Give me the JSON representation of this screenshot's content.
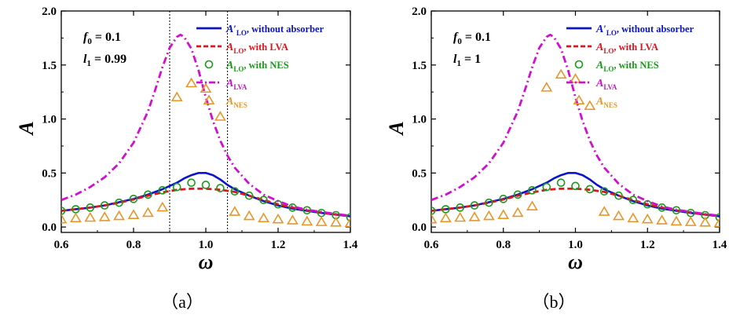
{
  "colors": {
    "without_absorber": "#0a14c8",
    "lva": "#e0141e",
    "nes": "#1a9a1a",
    "a_lva": "#d010d0",
    "a_nes": "#e8962a",
    "axis": "#000000",
    "guide_line": "#000000"
  },
  "chart_data": [
    {
      "type": "line",
      "panel": "(a)",
      "caption": "（a）",
      "xlabel": "ω",
      "ylabel": "A",
      "xlim": [
        0.6,
        1.4
      ],
      "ylim": [
        -0.05,
        2.0
      ],
      "xticks": [
        "0.6",
        "0.8",
        "1.0",
        "1.2",
        "1.4"
      ],
      "yticks": [
        "0.0",
        "0.5",
        "1.0",
        "1.5",
        "2.0"
      ],
      "params": [
        "f0 = 0.1",
        "l1 = 0.99"
      ],
      "vertical_lines": [
        0.9,
        1.06
      ],
      "legend_position": "top-right",
      "series": [
        {
          "name": "A'LO, without absorber",
          "style": "solid",
          "color_key": "without_absorber",
          "x": [
            0.6,
            0.64,
            0.68,
            0.72,
            0.76,
            0.8,
            0.84,
            0.88,
            0.92,
            0.94,
            0.96,
            0.98,
            1.0,
            1.02,
            1.04,
            1.06,
            1.08,
            1.12,
            1.16,
            1.2,
            1.24,
            1.28,
            1.32,
            1.36,
            1.4
          ],
          "y": [
            0.15,
            0.165,
            0.18,
            0.2,
            0.23,
            0.26,
            0.3,
            0.35,
            0.41,
            0.45,
            0.48,
            0.5,
            0.5,
            0.48,
            0.44,
            0.39,
            0.35,
            0.29,
            0.24,
            0.2,
            0.17,
            0.15,
            0.13,
            0.115,
            0.1
          ]
        },
        {
          "name": "ALO, with LVA",
          "style": "dashed",
          "color_key": "lva",
          "x": [
            0.6,
            0.64,
            0.68,
            0.72,
            0.76,
            0.8,
            0.84,
            0.88,
            0.92,
            0.96,
            1.0,
            1.04,
            1.08,
            1.12,
            1.16,
            1.2,
            1.24,
            1.28,
            1.32,
            1.36,
            1.4
          ],
          "y": [
            0.15,
            0.165,
            0.18,
            0.2,
            0.225,
            0.255,
            0.29,
            0.32,
            0.345,
            0.355,
            0.355,
            0.345,
            0.325,
            0.29,
            0.25,
            0.21,
            0.18,
            0.155,
            0.135,
            0.115,
            0.1
          ]
        },
        {
          "name": "ALO, with NES",
          "style": "circle",
          "color_key": "nes",
          "x": [
            0.6,
            0.64,
            0.68,
            0.72,
            0.76,
            0.8,
            0.84,
            0.88,
            0.92,
            0.96,
            1.0,
            1.04,
            1.08,
            1.12,
            1.16,
            1.2,
            1.24,
            1.28,
            1.32,
            1.36,
            1.4
          ],
          "y": [
            0.15,
            0.165,
            0.18,
            0.2,
            0.225,
            0.26,
            0.3,
            0.34,
            0.37,
            0.41,
            0.39,
            0.36,
            0.33,
            0.29,
            0.25,
            0.21,
            0.18,
            0.155,
            0.13,
            0.11,
            0.09
          ]
        },
        {
          "name": "ALVA",
          "style": "dashdot",
          "color_key": "a_lva",
          "x": [
            0.6,
            0.64,
            0.68,
            0.72,
            0.76,
            0.8,
            0.84,
            0.86,
            0.88,
            0.9,
            0.92,
            0.93,
            0.94,
            0.96,
            0.98,
            1.0,
            1.02,
            1.04,
            1.06,
            1.08,
            1.12,
            1.16,
            1.2,
            1.24,
            1.28,
            1.32,
            1.36,
            1.4
          ],
          "y": [
            0.25,
            0.3,
            0.37,
            0.46,
            0.59,
            0.78,
            1.07,
            1.27,
            1.48,
            1.66,
            1.76,
            1.78,
            1.76,
            1.65,
            1.45,
            1.2,
            0.98,
            0.8,
            0.66,
            0.55,
            0.4,
            0.3,
            0.24,
            0.19,
            0.16,
            0.14,
            0.12,
            0.105
          ]
        },
        {
          "name": "ANES",
          "style": "triangle",
          "color_key": "a_nes",
          "x": [
            0.6,
            0.64,
            0.68,
            0.72,
            0.76,
            0.8,
            0.84,
            0.88,
            0.92,
            0.96,
            1.0,
            1.04,
            1.08,
            1.12,
            1.16,
            1.2,
            1.24,
            1.28,
            1.32,
            1.36,
            1.4
          ],
          "y": [
            0.07,
            0.08,
            0.085,
            0.09,
            0.1,
            0.11,
            0.13,
            0.18,
            1.2,
            1.33,
            1.28,
            1.02,
            0.14,
            0.1,
            0.08,
            0.07,
            0.06,
            0.05,
            0.045,
            0.04,
            0.035
          ]
        }
      ]
    },
    {
      "type": "line",
      "panel": "(b)",
      "caption": "（b）",
      "xlabel": "ω",
      "ylabel": "A",
      "xlim": [
        0.6,
        1.4
      ],
      "ylim": [
        -0.05,
        2.0
      ],
      "xticks": [
        "0.6",
        "0.8",
        "1.0",
        "1.2",
        "1.4"
      ],
      "yticks": [
        "0.0",
        "0.5",
        "1.0",
        "1.5",
        "2.0"
      ],
      "params": [
        "f0 = 0.1",
        "l1 = 1"
      ],
      "vertical_lines": [],
      "legend_position": "top-right",
      "series": [
        {
          "name": "A'LO, without absorber",
          "style": "solid",
          "color_key": "without_absorber",
          "x": [
            0.6,
            0.64,
            0.68,
            0.72,
            0.76,
            0.8,
            0.84,
            0.88,
            0.92,
            0.94,
            0.96,
            0.98,
            1.0,
            1.02,
            1.04,
            1.06,
            1.08,
            1.12,
            1.16,
            1.2,
            1.24,
            1.28,
            1.32,
            1.36,
            1.4
          ],
          "y": [
            0.15,
            0.165,
            0.18,
            0.2,
            0.23,
            0.26,
            0.3,
            0.35,
            0.41,
            0.45,
            0.48,
            0.5,
            0.5,
            0.48,
            0.44,
            0.39,
            0.35,
            0.29,
            0.24,
            0.2,
            0.17,
            0.15,
            0.13,
            0.115,
            0.1
          ]
        },
        {
          "name": "ALO, with LVA",
          "style": "dashed",
          "color_key": "lva",
          "x": [
            0.6,
            0.64,
            0.68,
            0.72,
            0.76,
            0.8,
            0.84,
            0.88,
            0.92,
            0.96,
            1.0,
            1.04,
            1.08,
            1.12,
            1.16,
            1.2,
            1.24,
            1.28,
            1.32,
            1.36,
            1.4
          ],
          "y": [
            0.15,
            0.165,
            0.18,
            0.2,
            0.225,
            0.255,
            0.29,
            0.32,
            0.345,
            0.355,
            0.355,
            0.345,
            0.325,
            0.29,
            0.25,
            0.21,
            0.18,
            0.155,
            0.135,
            0.115,
            0.1
          ]
        },
        {
          "name": "ALO, with NES",
          "style": "circle",
          "color_key": "nes",
          "x": [
            0.6,
            0.64,
            0.68,
            0.72,
            0.76,
            0.8,
            0.84,
            0.88,
            0.92,
            0.96,
            1.0,
            1.04,
            1.08,
            1.12,
            1.16,
            1.2,
            1.24,
            1.28,
            1.32,
            1.36,
            1.4
          ],
          "y": [
            0.15,
            0.165,
            0.18,
            0.2,
            0.225,
            0.26,
            0.3,
            0.34,
            0.37,
            0.41,
            0.38,
            0.35,
            0.33,
            0.29,
            0.25,
            0.21,
            0.18,
            0.155,
            0.13,
            0.11,
            0.09
          ]
        },
        {
          "name": "ALVA",
          "style": "dashdot",
          "color_key": "a_lva",
          "x": [
            0.6,
            0.64,
            0.68,
            0.72,
            0.76,
            0.8,
            0.84,
            0.86,
            0.88,
            0.9,
            0.92,
            0.93,
            0.94,
            0.96,
            0.98,
            1.0,
            1.02,
            1.04,
            1.06,
            1.08,
            1.12,
            1.16,
            1.2,
            1.24,
            1.28,
            1.32,
            1.36,
            1.4
          ],
          "y": [
            0.25,
            0.3,
            0.37,
            0.46,
            0.59,
            0.78,
            1.07,
            1.27,
            1.48,
            1.66,
            1.76,
            1.78,
            1.76,
            1.65,
            1.45,
            1.2,
            0.98,
            0.8,
            0.66,
            0.55,
            0.4,
            0.3,
            0.24,
            0.19,
            0.16,
            0.14,
            0.12,
            0.105
          ]
        },
        {
          "name": "ANES",
          "style": "triangle",
          "color_key": "a_nes",
          "x": [
            0.6,
            0.64,
            0.68,
            0.72,
            0.76,
            0.8,
            0.84,
            0.88,
            0.92,
            0.96,
            1.0,
            1.04,
            1.08,
            1.12,
            1.16,
            1.2,
            1.24,
            1.28,
            1.32,
            1.36,
            1.4
          ],
          "y": [
            0.07,
            0.08,
            0.085,
            0.09,
            0.1,
            0.11,
            0.13,
            0.19,
            1.29,
            1.41,
            1.37,
            1.12,
            0.14,
            0.1,
            0.08,
            0.07,
            0.06,
            0.05,
            0.045,
            0.04,
            0.035
          ]
        }
      ]
    }
  ]
}
